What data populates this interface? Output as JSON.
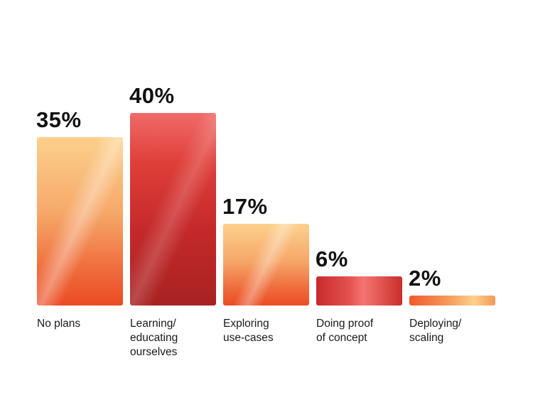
{
  "chart_data": {
    "type": "bar",
    "title": "",
    "xlabel": "",
    "ylabel": "",
    "ylim": [
      0,
      40
    ],
    "grid": false,
    "categories": [
      [
        "No plans"
      ],
      [
        "Learning/",
        "educating",
        "ourselves"
      ],
      [
        "Exploring",
        "use-cases"
      ],
      [
        "Doing proof",
        "of concept"
      ],
      [
        "Deploying/",
        "scaling"
      ]
    ],
    "values": [
      35,
      40,
      17,
      6,
      2
    ],
    "value_labels": [
      "35%",
      "40%",
      "17%",
      "6%",
      "2%"
    ],
    "bar_styles": [
      "light",
      "dark",
      "light",
      "dark",
      "light"
    ],
    "colors": {
      "light_top": "#fdd08c",
      "light_bottom": "#eb4c24",
      "dark_top": "#f06b68",
      "dark_bottom": "#a82222",
      "text": "#111111"
    }
  }
}
